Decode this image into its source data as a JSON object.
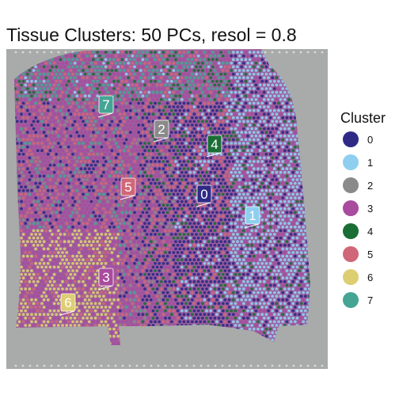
{
  "chart_data": {
    "type": "scatter",
    "title": "Tissue Clusters: 50 PCs, resol = 0.8",
    "legend": {
      "title": "Cluster",
      "placement": "right"
    },
    "series": [
      {
        "name": "0",
        "color": "#2E2A86"
      },
      {
        "name": "1",
        "color": "#8ECFEF"
      },
      {
        "name": "2",
        "color": "#8A8A8A"
      },
      {
        "name": "3",
        "color": "#A94B9E"
      },
      {
        "name": "4",
        "color": "#1A6E35"
      },
      {
        "name": "5",
        "color": "#D06778"
      },
      {
        "name": "6",
        "color": "#DDCE72"
      },
      {
        "name": "7",
        "color": "#45A594"
      }
    ],
    "cluster_labels": [
      {
        "label": "7",
        "color": "#45A594"
      },
      {
        "label": "2",
        "color": "#8A8A8A"
      },
      {
        "label": "4",
        "color": "#1A6E35"
      },
      {
        "label": "5",
        "color": "#D06778"
      },
      {
        "label": "0",
        "color": "#2E2A86"
      },
      {
        "label": "1",
        "color": "#8ECFEF"
      },
      {
        "label": "3",
        "color": "#A94B9E"
      },
      {
        "label": "6",
        "color": "#DDCE72"
      }
    ],
    "background": "H&E tissue image",
    "grid": false
  }
}
